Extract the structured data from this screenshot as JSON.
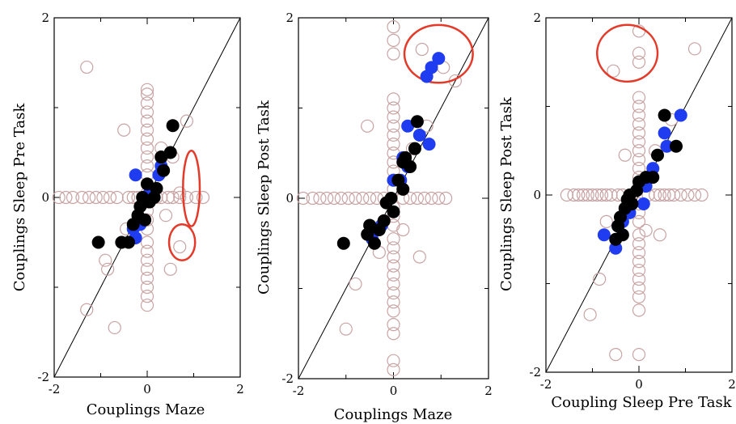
{
  "colors": {
    "hollow": "#c9a3a3",
    "blue": "#1f3cf0",
    "black": "#000000",
    "ellipse": "#e33a2a"
  },
  "chart_data": [
    {
      "type": "scatter",
      "xlabel": "Couplings Maze",
      "ylabel": "Couplings  Sleep Pre Task",
      "xlim": [
        -2,
        2
      ],
      "ylim": [
        -2,
        2
      ],
      "xticks": [
        "-2",
        "0",
        "2"
      ],
      "yticks": [
        "2",
        "0",
        "-2"
      ],
      "diagonal": true,
      "hollow": [
        [
          0,
          1.2
        ],
        [
          0,
          1.15
        ],
        [
          0,
          1.05
        ],
        [
          0,
          0.95
        ],
        [
          0,
          0.85
        ],
        [
          0,
          0.75
        ],
        [
          0,
          0.65
        ],
        [
          0,
          0.55
        ],
        [
          0,
          0.45
        ],
        [
          0,
          0.35
        ],
        [
          0,
          0.25
        ],
        [
          0,
          0.15
        ],
        [
          0,
          0.05
        ],
        [
          0,
          -0.05
        ],
        [
          0,
          -0.15
        ],
        [
          0,
          -0.25
        ],
        [
          0,
          -0.35
        ],
        [
          0,
          -0.5
        ],
        [
          0,
          -0.6
        ],
        [
          0,
          -0.7
        ],
        [
          0,
          -0.8
        ],
        [
          0,
          -0.9
        ],
        [
          0,
          -1.0
        ],
        [
          0,
          -1.1
        ],
        [
          0,
          -1.2
        ],
        [
          -0.95,
          0
        ],
        [
          -0.8,
          0
        ],
        [
          -0.65,
          0
        ],
        [
          -0.4,
          0
        ],
        [
          -0.3,
          0
        ],
        [
          -0.2,
          0
        ],
        [
          -0.1,
          0
        ],
        [
          0.1,
          0
        ],
        [
          0.2,
          0
        ],
        [
          0.3,
          0
        ],
        [
          0.45,
          0
        ],
        [
          0.55,
          0
        ],
        [
          0.7,
          0
        ],
        [
          0.85,
          0
        ],
        [
          1.05,
          0
        ],
        [
          -1.4,
          0
        ],
        [
          -1.9,
          0
        ],
        [
          -1.75,
          0
        ],
        [
          -1.6,
          0
        ],
        [
          -1.25,
          0
        ],
        [
          -1.1,
          0
        ],
        [
          1.2,
          0
        ],
        [
          -1.3,
          1.45
        ],
        [
          -1.3,
          -1.25
        ],
        [
          -0.7,
          -1.45
        ],
        [
          -0.5,
          0.75
        ],
        [
          0.85,
          0.85
        ],
        [
          0.3,
          0.55
        ],
        [
          0.55,
          0.45
        ],
        [
          0.7,
          0.05
        ],
        [
          0.4,
          -0.2
        ],
        [
          -0.45,
          -0.35
        ],
        [
          -0.85,
          -0.8
        ],
        [
          0.5,
          -0.8
        ],
        [
          0.7,
          -0.55
        ],
        [
          -0.9,
          -0.7
        ]
      ],
      "blue": [
        [
          -0.25,
          0.25
        ],
        [
          0.25,
          0.25
        ],
        [
          0.3,
          0.35
        ],
        [
          -0.3,
          -0.35
        ],
        [
          -0.25,
          -0.45
        ],
        [
          -0.15,
          -0.3
        ],
        [
          0.05,
          0.05
        ]
      ],
      "black": [
        [
          -1.05,
          -0.5
        ],
        [
          -0.55,
          -0.5
        ],
        [
          -0.4,
          -0.5
        ],
        [
          -0.3,
          -0.3
        ],
        [
          -0.2,
          -0.2
        ],
        [
          -0.15,
          -0.1
        ],
        [
          -0.1,
          0.0
        ],
        [
          0.05,
          -0.05
        ],
        [
          0.15,
          0.0
        ],
        [
          0.2,
          0.1
        ],
        [
          0.35,
          0.3
        ],
        [
          0.5,
          0.5
        ],
        [
          0.55,
          0.8
        ],
        [
          -0.05,
          -0.25
        ],
        [
          0.0,
          0.15
        ],
        [
          0.3,
          0.45
        ]
      ],
      "ellipses": [
        {
          "cx": 0.95,
          "cy": 0.1,
          "rx": 0.18,
          "ry": 0.42
        },
        {
          "cx": 0.75,
          "cy": -0.5,
          "rx": 0.28,
          "ry": 0.2
        }
      ]
    },
    {
      "type": "scatter",
      "xlabel": "Couplings Maze",
      "ylabel": "Couplings Sleep Post Task",
      "xlim": [
        -2,
        2
      ],
      "ylim": [
        -2,
        2
      ],
      "xticks": [
        "-2",
        "0",
        "2"
      ],
      "yticks": [
        "2",
        "0",
        "-2"
      ],
      "diagonal": true,
      "hollow": [
        [
          0,
          1.9
        ],
        [
          0,
          1.75
        ],
        [
          0,
          1.6
        ],
        [
          0,
          1.1
        ],
        [
          0,
          1.0
        ],
        [
          0,
          0.9
        ],
        [
          0,
          0.8
        ],
        [
          0,
          0.7
        ],
        [
          0,
          0.6
        ],
        [
          0,
          0.5
        ],
        [
          0,
          0.4
        ],
        [
          0,
          0.3
        ],
        [
          0,
          0.2
        ],
        [
          0,
          0.1
        ],
        [
          0,
          -0.1
        ],
        [
          0,
          -0.2
        ],
        [
          0,
          -0.3
        ],
        [
          0,
          -0.45
        ],
        [
          0,
          -0.55
        ],
        [
          0,
          -0.65
        ],
        [
          0,
          -0.75
        ],
        [
          0,
          -0.85
        ],
        [
          0,
          -0.95
        ],
        [
          0,
          -1.05
        ],
        [
          0,
          -1.15
        ],
        [
          0,
          -1.25
        ],
        [
          0,
          -1.4
        ],
        [
          0,
          -1.5
        ],
        [
          0,
          -1.8
        ],
        [
          0,
          -1.9
        ],
        [
          -1.7,
          0
        ],
        [
          -1.55,
          0
        ],
        [
          -1.4,
          0
        ],
        [
          -1.25,
          0
        ],
        [
          -1.1,
          0
        ],
        [
          -0.95,
          0
        ],
        [
          -0.8,
          0
        ],
        [
          -0.65,
          0
        ],
        [
          -0.5,
          0
        ],
        [
          -0.35,
          0
        ],
        [
          -0.2,
          0
        ],
        [
          0.2,
          0
        ],
        [
          0.35,
          0
        ],
        [
          0.5,
          0
        ],
        [
          0.65,
          0
        ],
        [
          0.8,
          0
        ],
        [
          0.95,
          0
        ],
        [
          1.1,
          0
        ],
        [
          -1.9,
          0
        ],
        [
          -0.55,
          0.8
        ],
        [
          1.3,
          1.3
        ],
        [
          0.7,
          0.8
        ],
        [
          0.55,
          -0.65
        ],
        [
          -0.3,
          -0.6
        ],
        [
          -0.8,
          -0.95
        ],
        [
          -1.0,
          -1.45
        ],
        [
          0.4,
          0.55
        ],
        [
          0.2,
          -0.35
        ],
        [
          0.6,
          1.65
        ],
        [
          1.05,
          1.45
        ],
        [
          -0.2,
          -0.25
        ]
      ],
      "blue": [
        [
          0.8,
          1.45
        ],
        [
          0.95,
          1.55
        ],
        [
          0.7,
          1.35
        ],
        [
          0.3,
          0.8
        ],
        [
          0.55,
          0.7
        ],
        [
          0.75,
          0.6
        ],
        [
          0.2,
          0.45
        ],
        [
          0.3,
          0.35
        ],
        [
          0.0,
          0.2
        ],
        [
          -0.25,
          -0.3
        ],
        [
          -0.45,
          -0.45
        ],
        [
          0.15,
          0.2
        ]
      ],
      "black": [
        [
          -1.05,
          -0.5
        ],
        [
          -0.55,
          -0.4
        ],
        [
          -0.4,
          -0.5
        ],
        [
          -0.3,
          -0.35
        ],
        [
          -0.2,
          -0.25
        ],
        [
          -0.15,
          -0.05
        ],
        [
          -0.05,
          0.0
        ],
        [
          0.0,
          -0.15
        ],
        [
          0.1,
          0.2
        ],
        [
          0.2,
          0.4
        ],
        [
          0.25,
          0.45
        ],
        [
          0.35,
          0.35
        ],
        [
          0.45,
          0.55
        ],
        [
          0.5,
          0.85
        ],
        [
          -0.5,
          -0.3
        ],
        [
          0.2,
          0.1
        ]
      ],
      "ellipses": [
        {
          "cx": 0.95,
          "cy": 1.6,
          "rx": 0.72,
          "ry": 0.32
        }
      ]
    },
    {
      "type": "scatter",
      "xlabel": "Coupling Sleep Pre Task",
      "ylabel": "Couplings Sleep Post Task",
      "xlim": [
        -2,
        2
      ],
      "ylim": [
        -2,
        2
      ],
      "xticks": [
        "-2",
        "0",
        "2"
      ],
      "yticks": [
        "2",
        "0",
        "-2"
      ],
      "diagonal": true,
      "hollow": [
        [
          0,
          1.85
        ],
        [
          0,
          1.6
        ],
        [
          0,
          1.5
        ],
        [
          0,
          1.1
        ],
        [
          0,
          1.0
        ],
        [
          0,
          0.9
        ],
        [
          0,
          0.8
        ],
        [
          0,
          0.7
        ],
        [
          0,
          0.6
        ],
        [
          0,
          0.5
        ],
        [
          0,
          0.4
        ],
        [
          0,
          0.3
        ],
        [
          0,
          0.2
        ],
        [
          0,
          0.1
        ],
        [
          0,
          -0.1
        ],
        [
          0,
          -0.2
        ],
        [
          0,
          -0.3
        ],
        [
          0,
          -0.45
        ],
        [
          0,
          -0.55
        ],
        [
          0,
          -0.65
        ],
        [
          0,
          -0.75
        ],
        [
          0,
          -0.85
        ],
        [
          0,
          -0.95
        ],
        [
          0,
          -1.05
        ],
        [
          0,
          -1.15
        ],
        [
          0,
          -1.3
        ],
        [
          0,
          -1.8
        ],
        [
          -1.55,
          0
        ],
        [
          -1.4,
          0
        ],
        [
          -1.3,
          0
        ],
        [
          -1.2,
          0
        ],
        [
          -1.1,
          0
        ],
        [
          -1.0,
          0
        ],
        [
          -0.9,
          0
        ],
        [
          -0.8,
          0
        ],
        [
          -0.7,
          0
        ],
        [
          -0.6,
          0
        ],
        [
          -0.45,
          0
        ],
        [
          -0.35,
          0
        ],
        [
          -0.2,
          0
        ],
        [
          0.2,
          0
        ],
        [
          0.35,
          0
        ],
        [
          0.45,
          0
        ],
        [
          0.55,
          0
        ],
        [
          0.65,
          0
        ],
        [
          0.75,
          0
        ],
        [
          0.9,
          0
        ],
        [
          1.05,
          0
        ],
        [
          1.2,
          0
        ],
        [
          1.35,
          0
        ],
        [
          -0.55,
          1.4
        ],
        [
          1.2,
          1.65
        ],
        [
          -0.3,
          0.45
        ],
        [
          0.35,
          0.5
        ],
        [
          0.45,
          -0.45
        ],
        [
          -0.85,
          -0.95
        ],
        [
          -1.05,
          -1.35
        ],
        [
          -0.5,
          -1.8
        ],
        [
          0.7,
          0.85
        ],
        [
          -0.7,
          -0.3
        ],
        [
          0.15,
          -0.4
        ]
      ],
      "blue": [
        [
          -0.75,
          -0.45
        ],
        [
          -0.5,
          -0.6
        ],
        [
          -0.45,
          -0.35
        ],
        [
          -0.35,
          -0.3
        ],
        [
          0.1,
          -0.1
        ],
        [
          0.25,
          0.2
        ],
        [
          0.3,
          0.3
        ],
        [
          0.55,
          0.7
        ],
        [
          0.6,
          0.55
        ],
        [
          0.9,
          0.9
        ],
        [
          -0.2,
          -0.2
        ],
        [
          0.15,
          0.1
        ]
      ],
      "black": [
        [
          -0.5,
          -0.5
        ],
        [
          -0.45,
          -0.35
        ],
        [
          -0.4,
          -0.25
        ],
        [
          -0.3,
          -0.15
        ],
        [
          -0.25,
          -0.05
        ],
        [
          -0.15,
          -0.1
        ],
        [
          -0.05,
          0.05
        ],
        [
          0.0,
          0.15
        ],
        [
          0.15,
          0.2
        ],
        [
          0.3,
          0.2
        ],
        [
          0.4,
          0.45
        ],
        [
          0.55,
          0.9
        ],
        [
          0.8,
          0.55
        ],
        [
          -0.35,
          -0.45
        ],
        [
          -0.2,
          0.0
        ]
      ],
      "ellipses": [
        {
          "cx": -0.25,
          "cy": 1.6,
          "rx": 0.65,
          "ry": 0.32
        }
      ]
    }
  ]
}
